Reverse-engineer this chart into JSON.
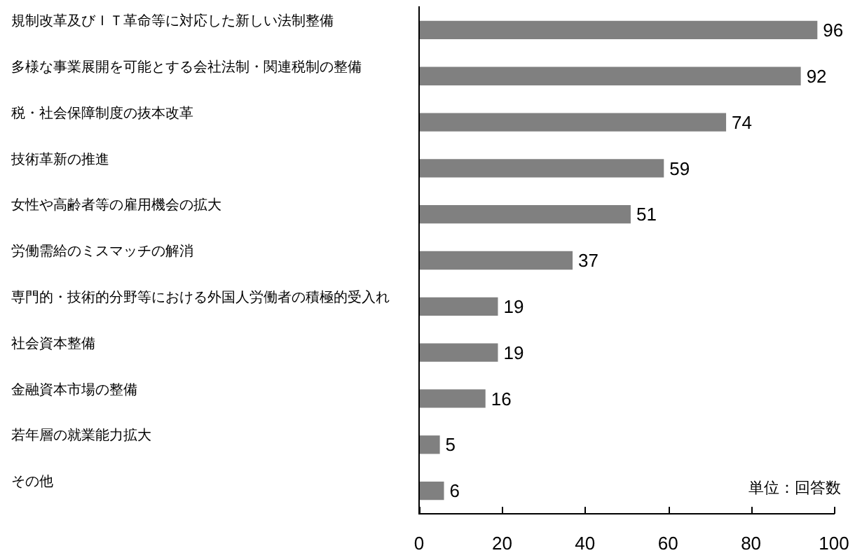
{
  "chart_data": {
    "type": "bar",
    "orientation": "horizontal",
    "categories": [
      "規制改革及びＩＴ革命等に対応した新しい法制整備",
      "多様な事業展開を可能とする会社法制・関連税制の整備",
      "税・社会保障制度の抜本改革",
      "技術革新の推進",
      "女性や高齢者等の雇用機会の拡大",
      "労働需給のミスマッチの解消",
      "専門的・技術的分野等における外国人労働者の積極的受入れ",
      "社会資本整備",
      "金融資本市場の整備",
      "若年層の就業能力拡大",
      "その他"
    ],
    "values": [
      96,
      92,
      74,
      59,
      51,
      37,
      19,
      19,
      16,
      5,
      6
    ],
    "color": "#808080",
    "xlim": [
      0,
      100
    ],
    "xticks": [
      0,
      20,
      40,
      60,
      80,
      100
    ],
    "grid": false,
    "data_labels": true,
    "annotations": [
      "単位：回答数"
    ]
  }
}
